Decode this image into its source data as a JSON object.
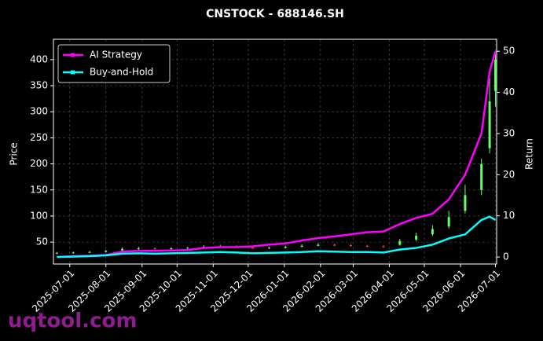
{
  "chart_data": {
    "type": "candlestick",
    "title": "CNSTOCK - 688146.SH",
    "ylabel": "Price",
    "y2label": "Return",
    "watermark": "uqtool.com",
    "x": [
      "2025-06-20",
      "2025-07-04",
      "2025-07-18",
      "2025-08-01",
      "2025-08-15",
      "2025-08-29",
      "2025-09-12",
      "2025-09-26",
      "2025-10-10",
      "2025-10-24",
      "2025-11-07",
      "2025-11-21",
      "2025-12-05",
      "2025-12-19",
      "2026-01-02",
      "2026-01-16",
      "2026-01-30",
      "2026-02-13",
      "2026-02-27",
      "2026-03-13",
      "2026-03-27",
      "2026-04-10",
      "2026-04-24",
      "2026-05-08",
      "2026-05-22",
      "2026-06-05",
      "2026-06-19",
      "2026-06-26",
      "2026-07-01"
    ],
    "open": [
      28,
      29,
      30,
      31,
      34,
      37,
      38,
      37,
      38,
      39,
      41,
      42,
      40,
      38,
      39,
      41,
      43,
      45,
      44,
      43,
      42,
      45,
      55,
      65,
      80,
      110,
      150,
      230,
      340
    ],
    "high": [
      31,
      32,
      33,
      35,
      40,
      41,
      40,
      40,
      41,
      44,
      45,
      44,
      42,
      41,
      43,
      46,
      48,
      47,
      46,
      45,
      44,
      56,
      68,
      82,
      110,
      160,
      210,
      365,
      415
    ],
    "low": [
      27,
      28,
      29,
      30,
      33,
      35,
      35,
      36,
      37,
      38,
      39,
      39,
      37,
      37,
      38,
      40,
      42,
      42,
      41,
      40,
      39,
      43,
      52,
      62,
      76,
      105,
      140,
      220,
      310
    ],
    "close": [
      29,
      30,
      31,
      33,
      37,
      38,
      37,
      38,
      39,
      41,
      42,
      41,
      38,
      39,
      41,
      43,
      45,
      44,
      43,
      42,
      41,
      52,
      62,
      75,
      98,
      140,
      200,
      320,
      400
    ],
    "up_color": "#66ff66",
    "down_color": "#ff4444",
    "series": [
      {
        "name": "AI Strategy",
        "color": "#ff00ff",
        "axis": "y2",
        "values": [
          0,
          0.2,
          0.3,
          0.5,
          1.3,
          1.5,
          1.5,
          1.6,
          1.7,
          2.2,
          2.4,
          2.4,
          2.6,
          3.0,
          3.3,
          4.0,
          4.6,
          5.0,
          5.5,
          6.0,
          6.2,
          8.0,
          9.5,
          10.5,
          14,
          20,
          30,
          45,
          50
        ]
      },
      {
        "name": "Buy-and-Hold",
        "color": "#00ffff",
        "axis": "y2",
        "values": [
          0,
          0.1,
          0.2,
          0.4,
          0.8,
          0.9,
          0.8,
          0.9,
          1.0,
          1.1,
          1.2,
          1.1,
          0.9,
          1.0,
          1.1,
          1.2,
          1.4,
          1.3,
          1.2,
          1.2,
          1.1,
          1.8,
          2.2,
          3.0,
          4.5,
          5.5,
          9.0,
          9.8,
          9.0
        ]
      }
    ],
    "xlim": [
      "2025-06-17",
      "2026-07-02"
    ],
    "xticks": [
      "2025-07-01",
      "2025-08-01",
      "2025-09-01",
      "2025-10-01",
      "2025-11-01",
      "2025-12-01",
      "2026-01-01",
      "2026-02-01",
      "2026-03-01",
      "2026-04-01",
      "2026-05-01",
      "2026-06-01",
      "2026-07-01"
    ],
    "ylim": [
      8,
      439
    ],
    "yticks": [
      50,
      100,
      150,
      200,
      250,
      300,
      350,
      400
    ],
    "y2lim": [
      -1.7,
      52.9
    ],
    "y2ticks": [
      0,
      10,
      20,
      30,
      40,
      50
    ],
    "grid": true,
    "legend": "upper-left"
  }
}
